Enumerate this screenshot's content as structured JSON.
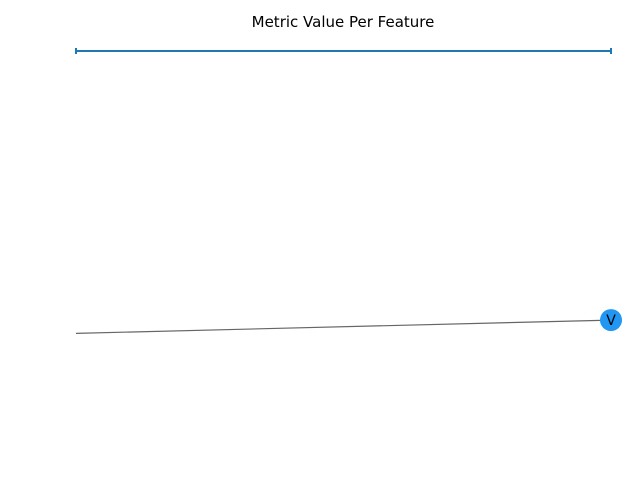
{
  "chart_data": {
    "type": "line",
    "title": "Metric Value Per Feature",
    "xlabel": "",
    "ylabel": "",
    "axes_visible": false,
    "grid": false,
    "series": [
      {
        "values": [
          1.0,
          1.0
        ],
        "color": "#1f77b4",
        "marker": "pipe"
      }
    ],
    "network": {
      "edge_color": "#666666",
      "node_color": "#2196f3",
      "nodes": [
        {
          "label": "",
          "y": 0.255
        },
        {
          "label": "V",
          "y": 0.29
        }
      ]
    }
  }
}
